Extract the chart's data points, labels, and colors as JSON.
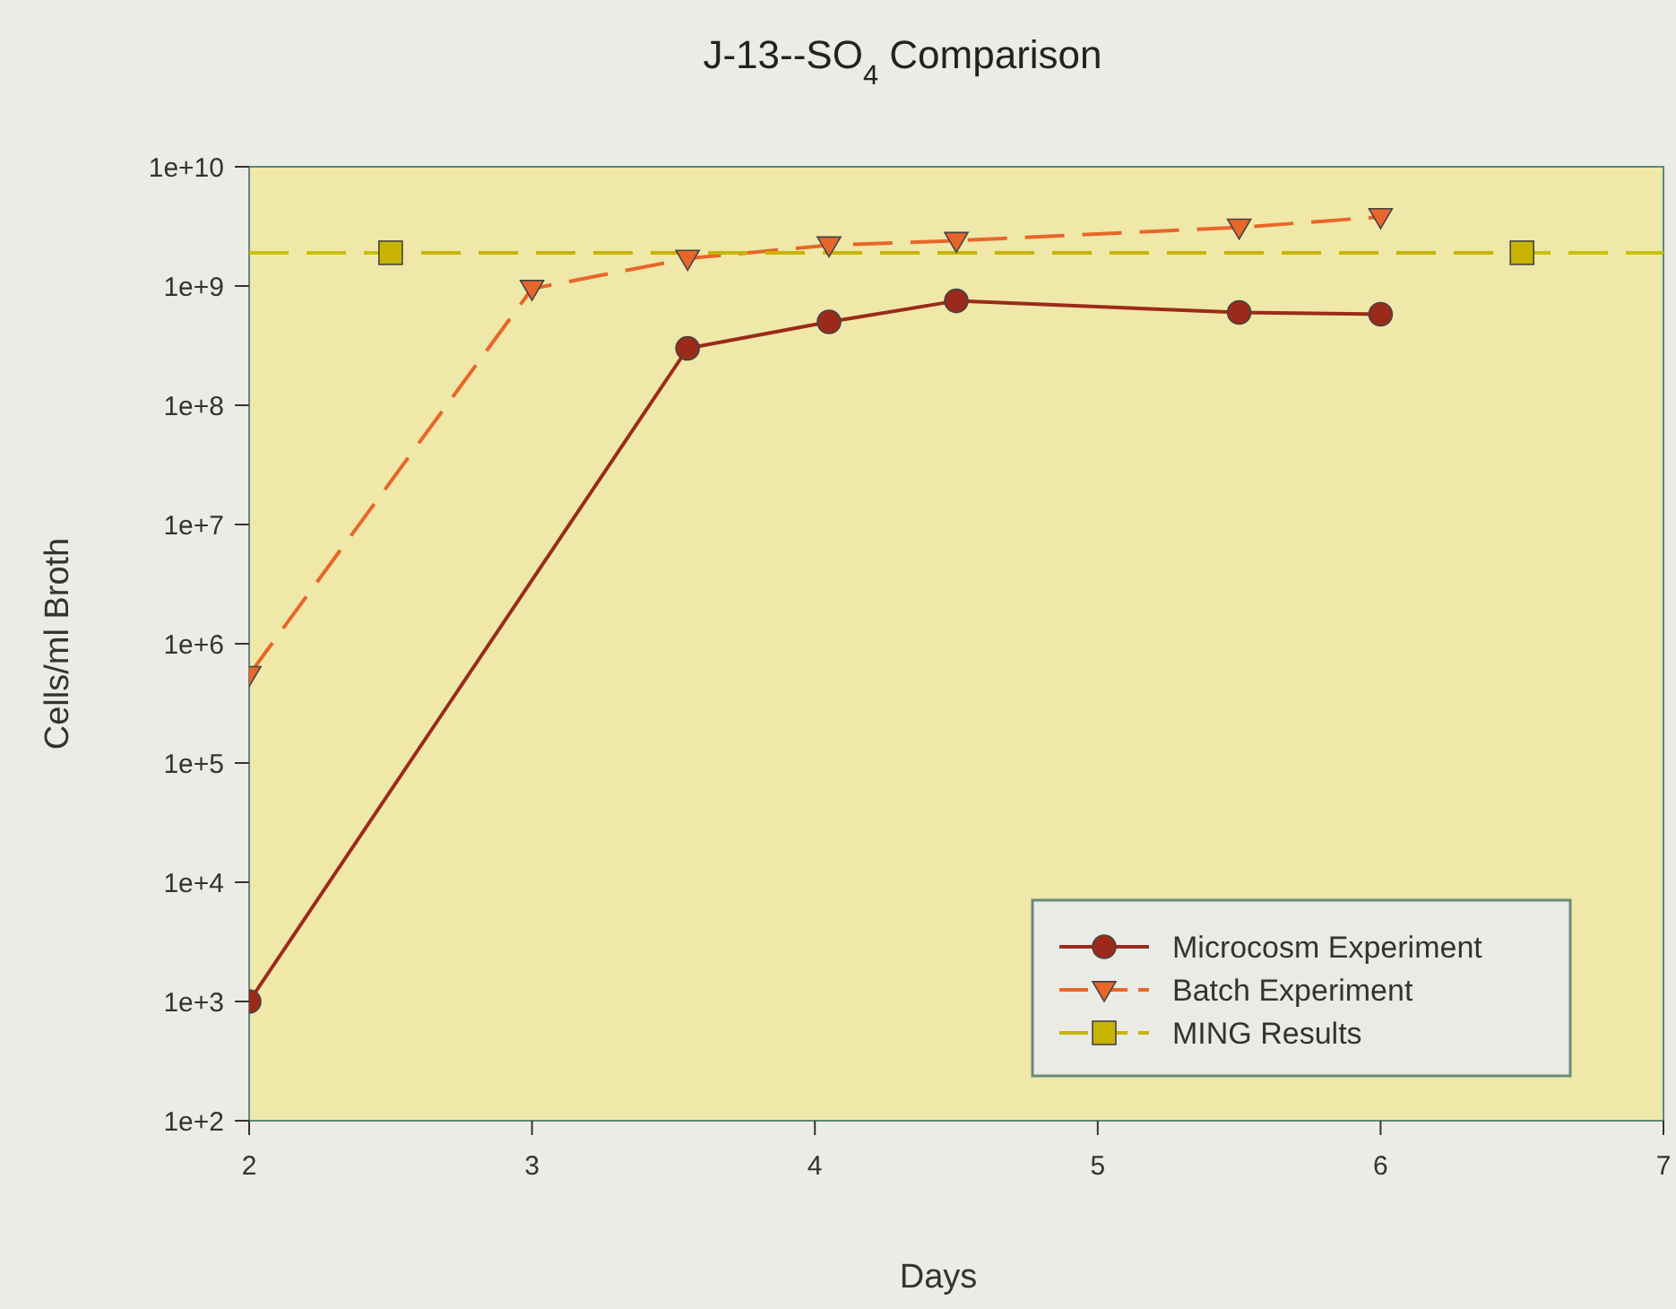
{
  "chart_data": {
    "type": "line",
    "title": "J-13--SO$_{4}$ Comparison",
    "xlabel": "Days",
    "ylabel": "Cells/ml Broth",
    "log": "y",
    "xlim": [
      2,
      7
    ],
    "xticks": [
      2,
      3,
      4,
      5,
      6,
      7
    ],
    "ylim": [
      100,
      10000000000
    ],
    "yticks": [
      {
        "value": 100,
        "label": "1e+2"
      },
      {
        "value": 1000,
        "label": "1e+3"
      },
      {
        "value": 10000,
        "label": "1e+4"
      },
      {
        "value": 100000,
        "label": "1e+5"
      },
      {
        "value": 1000000,
        "label": "1e+6"
      },
      {
        "value": 10000000,
        "label": "1e+7"
      },
      {
        "value": 100000000,
        "label": "1e+8"
      },
      {
        "value": 1000000000,
        "label": "1e+9"
      },
      {
        "value": 10000000000,
        "label": "1e+10"
      }
    ],
    "series": [
      {
        "name": "Microcosm Experiment",
        "color": "#9b2a1a",
        "marker": "circle",
        "line_style": "solid",
        "x": [
          2,
          3.55,
          4.05,
          4.5,
          5.5,
          6
        ],
        "values": [
          1000,
          300000000,
          500000000,
          750000000,
          600000000,
          580000000
        ]
      },
      {
        "name": "Batch Experiment",
        "color": "#e8662a",
        "marker": "triangle",
        "line_style": "dashed",
        "x": [
          2,
          3,
          3.55,
          4.05,
          4.5,
          5.5,
          6
        ],
        "values": [
          550000,
          950000000,
          1700000000,
          2200000000,
          2400000000,
          3100000000,
          3800000000
        ]
      },
      {
        "name": "MING Results",
        "color": "#c8b400",
        "marker": "square",
        "line_style": "dashed",
        "x": [
          2.5,
          6.5
        ],
        "values": [
          1900000000,
          1900000000
        ]
      }
    ],
    "ref_lines": [
      {
        "axis": "y",
        "value": 1900000000,
        "color": "#c8c000",
        "line_style": "dashed"
      }
    ],
    "legend": "bottom right",
    "grid": false
  }
}
